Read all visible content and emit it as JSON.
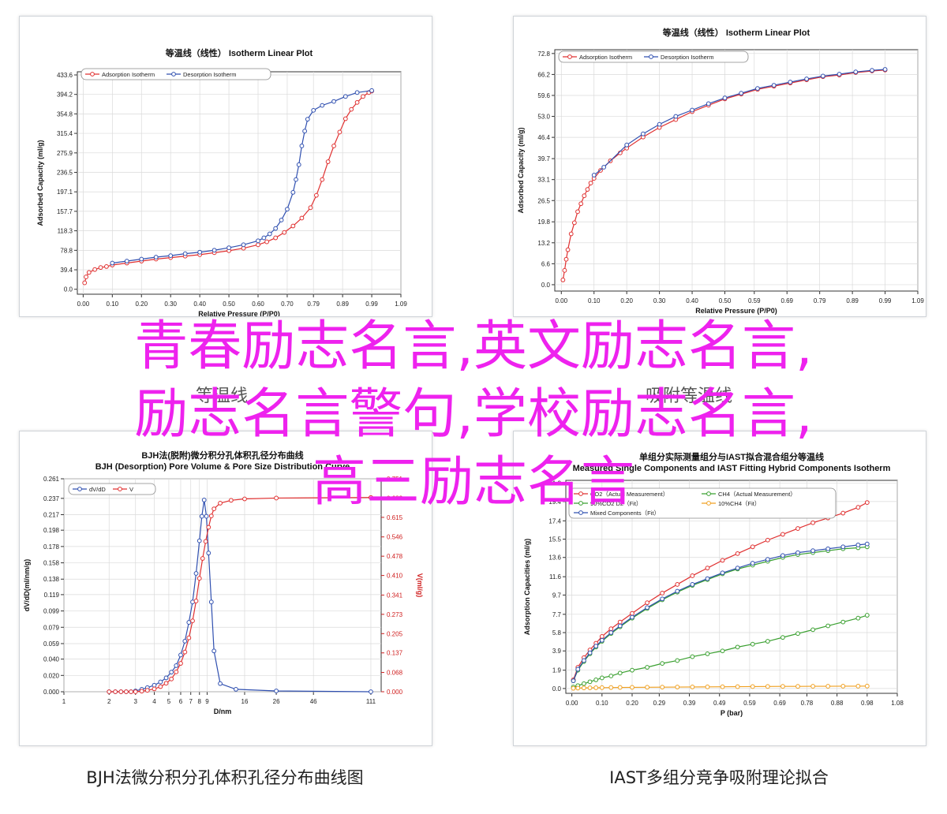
{
  "overlay": {
    "line1": "青春励志名言,英文励志名言,",
    "line2": "励志名言警句,学校励志名言,",
    "line3": "高三励志名言"
  },
  "captions": {
    "left": "BJH法微分积分孔体积孔径分布曲线图",
    "right": "IAST多组分竞争吸附理论拟合"
  },
  "faint": {
    "left": "等温线",
    "right": "吸附等温线"
  },
  "chart_data": [
    {
      "type": "line",
      "title": "等温线（线性） Isotherm Linear Plot",
      "xlabel": "Relative Pressure (P/P0)",
      "ylabel": "Adsorbed Capacity (ml/g)",
      "xlim": [
        -0.02,
        1.09
      ],
      "ylim": [
        -10,
        440
      ],
      "xticks": [
        "0.00",
        "0.10",
        "0.20",
        "0.30",
        "0.40",
        "0.50",
        "0.60",
        "0.70",
        "0.79",
        "0.89",
        "0.99",
        "1.09"
      ],
      "yticks": [
        "0.0",
        "39.4",
        "78.8",
        "118.3",
        "157.7",
        "197.1",
        "236.5",
        "275.9",
        "315.4",
        "354.8",
        "394.2",
        "433.6"
      ],
      "legend": "top-left",
      "series": [
        {
          "name": "Adsorption Isotherm",
          "color": "#e03030",
          "x": [
            0.005,
            0.01,
            0.02,
            0.04,
            0.06,
            0.08,
            0.1,
            0.15,
            0.2,
            0.25,
            0.3,
            0.35,
            0.4,
            0.45,
            0.5,
            0.55,
            0.6,
            0.63,
            0.66,
            0.69,
            0.72,
            0.75,
            0.78,
            0.8,
            0.82,
            0.84,
            0.86,
            0.88,
            0.9,
            0.92,
            0.94,
            0.96,
            0.98,
            0.99
          ],
          "y": [
            13,
            25,
            34,
            40,
            44,
            46,
            49,
            53,
            57,
            61,
            64,
            67,
            70,
            74,
            78,
            83,
            90,
            96,
            104,
            115,
            128,
            144,
            165,
            190,
            222,
            258,
            290,
            318,
            345,
            364,
            378,
            390,
            398,
            401
          ]
        },
        {
          "name": "Desorption Isotherm",
          "color": "#3050b0",
          "x": [
            0.1,
            0.15,
            0.2,
            0.25,
            0.3,
            0.35,
            0.4,
            0.45,
            0.5,
            0.55,
            0.6,
            0.62,
            0.64,
            0.66,
            0.68,
            0.7,
            0.72,
            0.73,
            0.74,
            0.75,
            0.76,
            0.77,
            0.79,
            0.82,
            0.86,
            0.9,
            0.94,
            0.99
          ],
          "y": [
            53,
            57,
            61,
            65,
            68,
            72,
            75,
            79,
            84,
            90,
            98,
            104,
            112,
            123,
            140,
            162,
            196,
            222,
            252,
            290,
            320,
            344,
            362,
            372,
            380,
            390,
            398,
            402
          ]
        }
      ]
    },
    {
      "type": "line",
      "title": "等温线（线性） Isotherm Linear Plot",
      "xlabel": "Relative Pressure (P/P0)",
      "ylabel": "Adsorbed Capacity (ml/g)",
      "xlim": [
        -0.02,
        1.09
      ],
      "ylim": [
        -2,
        74
      ],
      "xticks": [
        "0.00",
        "0.10",
        "0.20",
        "0.30",
        "0.40",
        "0.50",
        "0.59",
        "0.69",
        "0.79",
        "0.89",
        "0.99",
        "1.09"
      ],
      "yticks": [
        "0.0",
        "6.6",
        "13.2",
        "19.8",
        "26.5",
        "33.1",
        "39.7",
        "46.4",
        "53.0",
        "59.6",
        "66.2",
        "72.8"
      ],
      "legend": "top-left",
      "series": [
        {
          "name": "Adsorption Isotherm",
          "color": "#e03030",
          "x": [
            0.005,
            0.01,
            0.015,
            0.02,
            0.03,
            0.04,
            0.05,
            0.06,
            0.07,
            0.08,
            0.09,
            0.1,
            0.12,
            0.15,
            0.18,
            0.2,
            0.25,
            0.3,
            0.35,
            0.4,
            0.45,
            0.5,
            0.55,
            0.6,
            0.65,
            0.7,
            0.75,
            0.8,
            0.85,
            0.9,
            0.95,
            0.99
          ],
          "y": [
            1.5,
            4.5,
            8,
            11,
            16,
            19.5,
            23,
            25.5,
            28,
            30,
            32,
            33.5,
            36,
            39,
            41.5,
            43,
            46.5,
            49.5,
            52,
            54.5,
            56.5,
            58.5,
            60,
            61.5,
            62.5,
            63.5,
            64.5,
            65.5,
            66,
            66.8,
            67.3,
            67.6
          ]
        },
        {
          "name": "Desorption Isotherm",
          "color": "#3050b0",
          "x": [
            0.1,
            0.13,
            0.2,
            0.25,
            0.3,
            0.35,
            0.4,
            0.45,
            0.5,
            0.55,
            0.6,
            0.65,
            0.7,
            0.75,
            0.8,
            0.85,
            0.9,
            0.95,
            0.99
          ],
          "y": [
            34.5,
            37,
            44,
            47.5,
            50.5,
            53,
            55,
            57,
            58.8,
            60.3,
            61.8,
            62.8,
            63.8,
            64.8,
            65.7,
            66.3,
            67,
            67.5,
            67.8
          ]
        }
      ]
    },
    {
      "type": "line",
      "title": "BJH法(脱附)微分积分孔体积孔径分布曲线 BJH (Desorption) Pore Volume & Pore Size Distribution Curve",
      "xlabel": "D/nm",
      "ylabel": "dV/dD(ml/nm/g)",
      "ylabel_right": "V(ml/g)",
      "xscale": "log",
      "xticks": [
        "1",
        "2",
        "3",
        "4",
        "5",
        "6",
        "7",
        "8",
        "9",
        "16",
        "26",
        "46",
        "111"
      ],
      "yticks": [
        "0.000",
        "0.020",
        "0.040",
        "0.059",
        "0.079",
        "0.099",
        "0.119",
        "0.138",
        "0.158",
        "0.178",
        "0.198",
        "0.217",
        "0.237",
        "0.261"
      ],
      "yticks_right": [
        "0.000",
        "0.068",
        "0.137",
        "0.205",
        "0.273",
        "0.341",
        "0.410",
        "0.478",
        "0.546",
        "0.615",
        "0.683",
        "0.751"
      ],
      "ylim": [
        0,
        0.261
      ],
      "ylim_right": [
        0,
        0.751
      ],
      "legend": "top-left",
      "series": [
        {
          "name": "dV/dD",
          "color": "#3050b0",
          "axis": "left",
          "x": [
            2,
            2.2,
            2.4,
            2.6,
            2.8,
            3,
            3.3,
            3.6,
            4,
            4.4,
            4.8,
            5.2,
            5.6,
            6,
            6.4,
            6.8,
            7.2,
            7.6,
            8,
            8.3,
            8.6,
            8.9,
            9.2,
            9.6,
            10,
            11,
            14,
            26,
            111
          ],
          "y": [
            0,
            0,
            0,
            0,
            0,
            0.001,
            0.003,
            0.005,
            0.008,
            0.012,
            0.017,
            0.024,
            0.032,
            0.045,
            0.062,
            0.085,
            0.11,
            0.145,
            0.185,
            0.215,
            0.235,
            0.215,
            0.17,
            0.11,
            0.05,
            0.01,
            0.003,
            0.001,
            0
          ]
        },
        {
          "name": "V",
          "color": "#e03030",
          "axis": "right",
          "x": [
            2,
            2.2,
            2.4,
            2.6,
            2.8,
            3,
            3.3,
            3.6,
            4,
            4.4,
            4.8,
            5.2,
            5.6,
            6,
            6.4,
            6.8,
            7.2,
            7.6,
            8,
            8.4,
            8.8,
            9.2,
            9.6,
            10,
            11,
            13,
            16,
            26,
            111
          ],
          "y": [
            0,
            0,
            0,
            0,
            0,
            0,
            0.002,
            0.005,
            0.01,
            0.018,
            0.03,
            0.045,
            0.07,
            0.1,
            0.14,
            0.19,
            0.25,
            0.32,
            0.4,
            0.47,
            0.53,
            0.58,
            0.62,
            0.645,
            0.665,
            0.675,
            0.68,
            0.683,
            0.685
          ]
        }
      ]
    },
    {
      "type": "line",
      "title": "单组分实际测量组分与IAST拟合混合组分等温线 Measured Single Components and IAST Fitting Hybrid Components Isotherm",
      "xlabel": "P (bar)",
      "ylabel": "Adsorption Capacities (ml/g)",
      "xlim": [
        -0.02,
        1.08
      ],
      "ylim": [
        -0.5,
        21.6
      ],
      "xticks": [
        "0.00",
        "0.10",
        "0.20",
        "0.29",
        "0.39",
        "0.49",
        "0.59",
        "0.69",
        "0.78",
        "0.88",
        "0.98",
        "1.08"
      ],
      "yticks": [
        "0.0",
        "1.9",
        "3.9",
        "5.8",
        "7.7",
        "9.7",
        "11.6",
        "13.6",
        "15.5",
        "17.4",
        "19.4",
        "21.3"
      ],
      "legend": "top-left",
      "series": [
        {
          "name": "CO2（Actual Measurement）",
          "color": "#e03030",
          "x": [
            0.005,
            0.02,
            0.04,
            0.06,
            0.08,
            0.1,
            0.13,
            0.16,
            0.2,
            0.25,
            0.3,
            0.35,
            0.4,
            0.45,
            0.5,
            0.55,
            0.6,
            0.65,
            0.7,
            0.75,
            0.8,
            0.85,
            0.9,
            0.95,
            0.98
          ],
          "y": [
            0.9,
            2.2,
            3.2,
            4,
            4.7,
            5.4,
            6.2,
            6.9,
            7.8,
            8.9,
            9.9,
            10.8,
            11.7,
            12.5,
            13.3,
            14,
            14.7,
            15.4,
            16,
            16.6,
            17.2,
            17.7,
            18.2,
            18.8,
            19.3
          ]
        },
        {
          "name": "CH4（Actual Measurement）",
          "color": "#3aa030",
          "x": [
            0.005,
            0.02,
            0.04,
            0.06,
            0.08,
            0.1,
            0.13,
            0.16,
            0.2,
            0.25,
            0.3,
            0.35,
            0.4,
            0.45,
            0.5,
            0.55,
            0.6,
            0.65,
            0.7,
            0.75,
            0.8,
            0.85,
            0.9,
            0.95,
            0.98
          ],
          "y": [
            0.15,
            0.3,
            0.5,
            0.7,
            0.9,
            1.1,
            1.3,
            1.6,
            1.9,
            2.2,
            2.6,
            2.9,
            3.3,
            3.6,
            3.9,
            4.3,
            4.6,
            4.9,
            5.3,
            5.7,
            6.1,
            6.5,
            6.9,
            7.3,
            7.6
          ]
        },
        {
          "name": "90%CO2 D2（Fit）",
          "color": "#3aa030",
          "x": [
            0.005,
            0.02,
            0.04,
            0.06,
            0.08,
            0.1,
            0.13,
            0.16,
            0.2,
            0.25,
            0.3,
            0.35,
            0.4,
            0.45,
            0.5,
            0.55,
            0.6,
            0.65,
            0.7,
            0.75,
            0.8,
            0.85,
            0.9,
            0.95,
            0.98
          ],
          "y": [
            0.8,
            1.9,
            2.8,
            3.6,
            4.3,
            4.9,
            5.7,
            6.4,
            7.3,
            8.3,
            9.2,
            10,
            10.7,
            11.3,
            11.9,
            12.4,
            12.8,
            13.2,
            13.6,
            13.9,
            14.1,
            14.3,
            14.5,
            14.6,
            14.7
          ]
        },
        {
          "name": "10%CH4（Fit）",
          "color": "#f0a020",
          "x": [
            0.005,
            0.02,
            0.04,
            0.06,
            0.08,
            0.1,
            0.13,
            0.16,
            0.2,
            0.25,
            0.3,
            0.35,
            0.4,
            0.45,
            0.5,
            0.55,
            0.6,
            0.65,
            0.7,
            0.75,
            0.8,
            0.85,
            0.9,
            0.95,
            0.98
          ],
          "y": [
            0.02,
            0.04,
            0.06,
            0.07,
            0.08,
            0.09,
            0.1,
            0.11,
            0.12,
            0.13,
            0.14,
            0.15,
            0.16,
            0.17,
            0.18,
            0.19,
            0.2,
            0.21,
            0.22,
            0.22,
            0.23,
            0.23,
            0.24,
            0.24,
            0.25
          ]
        },
        {
          "name": "Mixed Components（Fit）",
          "color": "#3050b0",
          "x": [
            0.005,
            0.02,
            0.04,
            0.06,
            0.08,
            0.1,
            0.13,
            0.16,
            0.2,
            0.25,
            0.3,
            0.35,
            0.4,
            0.45,
            0.5,
            0.55,
            0.6,
            0.65,
            0.7,
            0.75,
            0.8,
            0.85,
            0.9,
            0.95,
            0.98
          ],
          "y": [
            0.8,
            2,
            2.9,
            3.7,
            4.4,
            5,
            5.8,
            6.5,
            7.4,
            8.4,
            9.3,
            10.1,
            10.8,
            11.4,
            12,
            12.5,
            13,
            13.4,
            13.8,
            14.1,
            14.3,
            14.5,
            14.7,
            14.9,
            15
          ]
        }
      ]
    }
  ]
}
